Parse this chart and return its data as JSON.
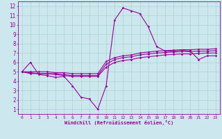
{
  "xlabel": "Windchill (Refroidissement éolien,°C)",
  "bg_color": "#cce8ee",
  "line_color": "#990099",
  "grid_color": "#aad4cc",
  "xlim": [
    -0.5,
    23.5
  ],
  "ylim": [
    0.5,
    12.5
  ],
  "xticks": [
    0,
    1,
    2,
    3,
    4,
    5,
    6,
    7,
    8,
    9,
    10,
    11,
    12,
    13,
    14,
    15,
    16,
    17,
    18,
    19,
    20,
    21,
    22,
    23
  ],
  "yticks": [
    1,
    2,
    3,
    4,
    5,
    6,
    7,
    8,
    9,
    10,
    11,
    12
  ],
  "lines": [
    {
      "x": [
        0,
        1,
        2,
        3,
        4,
        5,
        6,
        7,
        8,
        9,
        10,
        11,
        12,
        13,
        14,
        15,
        16,
        17,
        18,
        19,
        20,
        21,
        22,
        23
      ],
      "y": [
        5,
        6,
        4.7,
        4.6,
        4.4,
        4.5,
        3.5,
        2.3,
        2.1,
        1.0,
        3.5,
        10.5,
        11.8,
        11.5,
        11.2,
        9.8,
        7.7,
        7.2,
        7.2,
        7.3,
        7.2,
        6.3,
        6.7,
        6.7
      ]
    },
    {
      "x": [
        0,
        1,
        2,
        3,
        4,
        5,
        6,
        7,
        8,
        9,
        10,
        11,
        12,
        13,
        14,
        15,
        16,
        17,
        18,
        19,
        20,
        21,
        22,
        23
      ],
      "y": [
        5.0,
        4.8,
        4.8,
        4.8,
        4.7,
        4.6,
        4.5,
        4.5,
        4.5,
        4.5,
        5.5,
        6.0,
        6.2,
        6.3,
        6.5,
        6.6,
        6.7,
        6.8,
        6.85,
        6.9,
        6.9,
        6.95,
        7.0,
        7.0
      ]
    },
    {
      "x": [
        0,
        1,
        2,
        3,
        4,
        5,
        6,
        7,
        8,
        9,
        10,
        11,
        12,
        13,
        14,
        15,
        16,
        17,
        18,
        19,
        20,
        21,
        22,
        23
      ],
      "y": [
        5.0,
        4.9,
        4.8,
        4.8,
        4.8,
        4.7,
        4.6,
        4.6,
        4.6,
        4.6,
        5.8,
        6.3,
        6.5,
        6.6,
        6.8,
        6.9,
        7.0,
        7.05,
        7.1,
        7.15,
        7.15,
        7.2,
        7.2,
        7.25
      ]
    },
    {
      "x": [
        0,
        1,
        2,
        3,
        4,
        5,
        6,
        7,
        8,
        9,
        10,
        11,
        12,
        13,
        14,
        15,
        16,
        17,
        18,
        19,
        20,
        21,
        22,
        23
      ],
      "y": [
        5.0,
        5.0,
        5.0,
        5.0,
        4.9,
        4.9,
        4.8,
        4.8,
        4.8,
        4.8,
        6.1,
        6.5,
        6.7,
        6.8,
        7.0,
        7.1,
        7.2,
        7.25,
        7.3,
        7.35,
        7.35,
        7.4,
        7.4,
        7.45
      ]
    }
  ]
}
